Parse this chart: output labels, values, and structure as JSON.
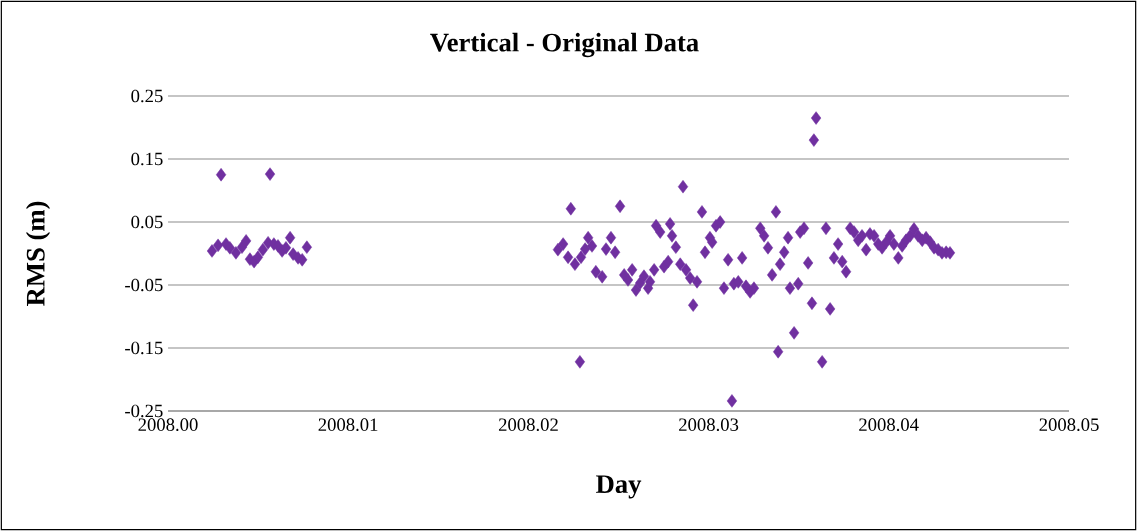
{
  "chart_data": {
    "type": "scatter",
    "title": "Vertical - Original Data",
    "xlabel": "Day",
    "ylabel": "RMS (m)",
    "xlim": [
      2008.0,
      2008.05
    ],
    "xticks": [
      {
        "value": 2008.0,
        "label": "2008.00"
      },
      {
        "value": 2008.01,
        "label": "2008.01"
      },
      {
        "value": 2008.02,
        "label": "2008.02"
      },
      {
        "value": 2008.03,
        "label": "2008.03"
      },
      {
        "value": 2008.04,
        "label": "2008.04"
      },
      {
        "value": 2008.05,
        "label": "2008.05"
      }
    ],
    "ylim": [
      -0.25,
      0.25
    ],
    "yticks": [
      -0.25,
      -0.15,
      -0.05,
      0.05,
      0.15,
      0.25
    ],
    "grid": "y",
    "marker": "diamond",
    "series": [
      {
        "color": "#7030a0",
        "x": [
          2008.00244,
          2008.00277,
          2008.00294,
          2008.00322,
          2008.00344,
          2008.00377,
          2008.00411,
          2008.00433,
          2008.00455,
          2008.00477,
          2008.00499,
          2008.00527,
          2008.00555,
          2008.00566,
          2008.00588,
          2008.0061,
          2008.00633,
          2008.00655,
          2008.00677,
          2008.00694,
          2008.00721,
          2008.00744,
          2008.00771,
          2008.02164,
          2008.02192,
          2008.0222,
          2008.02236,
          2008.02259,
          2008.02286,
          2008.02292,
          2008.02314,
          2008.02331,
          2008.02353,
          2008.02375,
          2008.02409,
          2008.02431,
          2008.02458,
          2008.02481,
          2008.02508,
          2008.02531,
          2008.02553,
          2008.02575,
          2008.02597,
          2008.0262,
          2008.02642,
          2008.02664,
          2008.02675,
          2008.02697,
          2008.02708,
          2008.02731,
          2008.02753,
          2008.02775,
          2008.02786,
          2008.02797,
          2008.02819,
          2008.02842,
          2008.02858,
          2008.02875,
          2008.02897,
          2008.02914,
          2008.02936,
          2008.02964,
          2008.0298,
          2008.03008,
          2008.03019,
          2008.03041,
          2008.03064,
          2008.03086,
          2008.03108,
          2008.0313,
          2008.03141,
          2008.03164,
          2008.03186,
          2008.03208,
          2008.0323,
          2008.03252,
          2008.03286,
          2008.03308,
          2008.0333,
          2008.03352,
          2008.03374,
          2008.03386,
          2008.03397,
          2008.03419,
          2008.03441,
          2008.03452,
          2008.03474,
          2008.03497,
          2008.03508,
          2008.0353,
          2008.03552,
          2008.03574,
          2008.03585,
          2008.03596,
          2008.0363,
          2008.03652,
          2008.03674,
          2008.03696,
          2008.03719,
          2008.03741,
          2008.03763,
          2008.03785,
          2008.03807,
          2008.0383,
          2008.03852,
          2008.03874,
          2008.03896,
          2008.03918,
          2008.03941,
          2008.03963,
          2008.03985,
          2008.04007,
          2008.04029,
          2008.04052,
          2008.04074,
          2008.04096,
          2008.04118,
          2008.0414,
          2008.04163,
          2008.04185,
          2008.04207,
          2008.04229,
          2008.04251,
          2008.04274,
          2008.04296,
          2008.04318,
          2008.0434
        ],
        "values": [
          0.004,
          0.013,
          0.125,
          0.015,
          0.009,
          0.001,
          0.01,
          0.02,
          -0.009,
          -0.013,
          -0.006,
          0.006,
          0.017,
          0.126,
          0.015,
          0.012,
          0.004,
          0.009,
          0.025,
          -0.001,
          -0.007,
          -0.01,
          0.01,
          0.006,
          0.015,
          -0.006,
          0.071,
          -0.017,
          -0.172,
          -0.006,
          0.007,
          0.025,
          0.012,
          -0.029,
          -0.037,
          0.007,
          0.025,
          0.002,
          0.075,
          -0.034,
          -0.042,
          -0.026,
          -0.058,
          -0.047,
          -0.036,
          -0.055,
          -0.045,
          -0.026,
          0.044,
          0.034,
          -0.021,
          -0.013,
          0.047,
          0.028,
          0.01,
          -0.017,
          0.106,
          -0.026,
          -0.039,
          -0.082,
          -0.045,
          0.066,
          0.002,
          0.025,
          0.018,
          0.044,
          0.05,
          -0.055,
          -0.01,
          -0.234,
          -0.048,
          -0.045,
          -0.007,
          -0.052,
          -0.061,
          -0.055,
          0.04,
          0.028,
          0.009,
          -0.034,
          0.066,
          -0.156,
          -0.017,
          0.002,
          0.025,
          -0.055,
          -0.126,
          -0.048,
          0.034,
          0.04,
          -0.015,
          -0.079,
          0.18,
          0.215,
          -0.172,
          0.04,
          -0.088,
          -0.007,
          0.015,
          -0.013,
          -0.029,
          0.04,
          0.034,
          0.021,
          0.028,
          0.006,
          0.031,
          0.028,
          0.015,
          0.009,
          0.018,
          0.028,
          0.015,
          -0.007,
          0.012,
          0.021,
          0.028,
          0.039,
          0.028,
          0.021,
          0.025,
          0.018,
          0.009,
          0.006,
          0.001,
          0.002,
          0.001
        ]
      }
    ]
  }
}
